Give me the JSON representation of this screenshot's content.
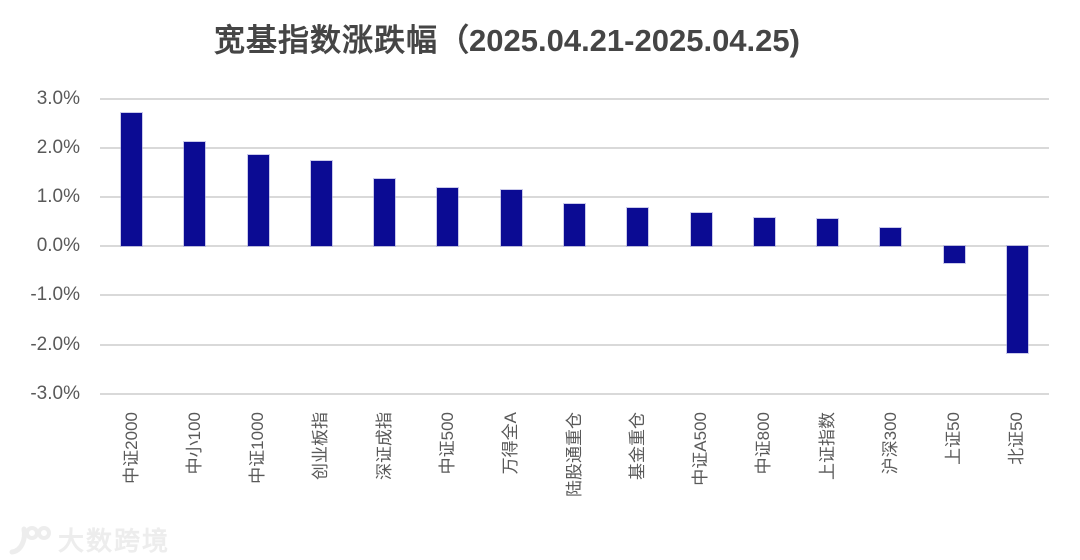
{
  "title": {
    "main": "宽基指数涨跌幅",
    "period": "（2025.04.21-2025.04.25)"
  },
  "watermark": {
    "logo": "100-swoosh",
    "text": "大数跨境"
  },
  "chart_data": {
    "type": "bar",
    "title": "宽基指数涨跌幅（2025.04.21-2025.04.25)",
    "categories": [
      "中证2000",
      "中小100",
      "中证1000",
      "创业板指",
      "深证成指",
      "中证500",
      "万得全A",
      "陆股通重仓",
      "基金重仓",
      "中证A500",
      "中证800",
      "上证指数",
      "沪深300",
      "上证50",
      "北证50"
    ],
    "values": [
      2.72,
      2.12,
      1.86,
      1.74,
      1.38,
      1.19,
      1.14,
      0.87,
      0.77,
      0.68,
      0.57,
      0.55,
      0.37,
      -0.35,
      -2.18
    ],
    "unit": "%",
    "xlabel": "",
    "ylabel": "",
    "ylim": [
      -3.0,
      3.0
    ],
    "ytick_step": 1.0,
    "ytick_labels": [
      "3.0%",
      "2.0%",
      "1.0%",
      "0.0%",
      "-1.0%",
      "-2.0%",
      "-3.0%"
    ],
    "ytick_values": [
      3.0,
      2.0,
      1.0,
      0.0,
      -1.0,
      -2.0,
      -3.0
    ],
    "grid": true,
    "legend": false,
    "colors": {
      "bar": "#0b0b93",
      "bar_edge": "#9e9ed8",
      "grid": "#d9d9d9",
      "axis_text": "#595959",
      "title_text": "#454545",
      "watermark": "#ededed"
    }
  }
}
